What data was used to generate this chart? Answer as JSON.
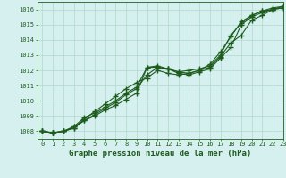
{
  "title": "Graphe pression niveau de la mer (hPa)",
  "bg_color": "#d6f0f0",
  "grid_color": "#b0d8c8",
  "line_color": "#1e5c1e",
  "xlim": [
    -0.5,
    23
  ],
  "ylim": [
    1007.5,
    1016.5
  ],
  "xticks": [
    0,
    1,
    2,
    3,
    4,
    5,
    6,
    7,
    8,
    9,
    10,
    11,
    12,
    13,
    14,
    15,
    16,
    17,
    18,
    19,
    20,
    21,
    22,
    23
  ],
  "yticks": [
    1008,
    1009,
    1010,
    1011,
    1012,
    1013,
    1014,
    1015,
    1016
  ],
  "series": [
    [
      1008.0,
      1007.9,
      1008.0,
      1008.2,
      1008.7,
      1009.0,
      1009.4,
      1009.7,
      1010.1,
      1010.5,
      1012.2,
      1012.2,
      1012.1,
      1011.9,
      1012.0,
      1012.1,
      1012.3,
      1013.0,
      1014.3,
      1015.1,
      1015.6,
      1015.9,
      1016.0,
      1016.1
    ],
    [
      1008.0,
      1007.9,
      1008.0,
      1008.3,
      1008.7,
      1009.1,
      1009.5,
      1009.9,
      1010.4,
      1010.8,
      1011.7,
      1012.2,
      1012.1,
      1011.8,
      1011.7,
      1011.9,
      1012.1,
      1012.8,
      1013.5,
      1015.0,
      1015.5,
      1015.8,
      1016.0,
      1016.1
    ],
    [
      1008.0,
      1007.9,
      1008.0,
      1008.2,
      1008.8,
      1009.3,
      1009.8,
      1010.3,
      1010.8,
      1011.2,
      1011.5,
      1012.0,
      1011.8,
      1011.7,
      1011.8,
      1012.0,
      1012.2,
      1012.9,
      1013.8,
      1014.3,
      1015.3,
      1015.6,
      1016.0,
      1016.2
    ],
    [
      1008.0,
      1007.9,
      1008.0,
      1008.3,
      1008.9,
      1009.2,
      1009.6,
      1010.0,
      1010.5,
      1010.9,
      1012.2,
      1012.3,
      1012.1,
      1011.9,
      1011.8,
      1012.0,
      1012.4,
      1013.2,
      1014.2,
      1015.2,
      1015.6,
      1015.9,
      1016.1,
      1016.2
    ]
  ],
  "marker": "+",
  "markersize": 4.0,
  "linewidth": 0.8,
  "title_fontsize": 6.5,
  "tick_fontsize": 5.0,
  "tick_color": "#1e5c1e",
  "spine_color": "#1e5c1e"
}
